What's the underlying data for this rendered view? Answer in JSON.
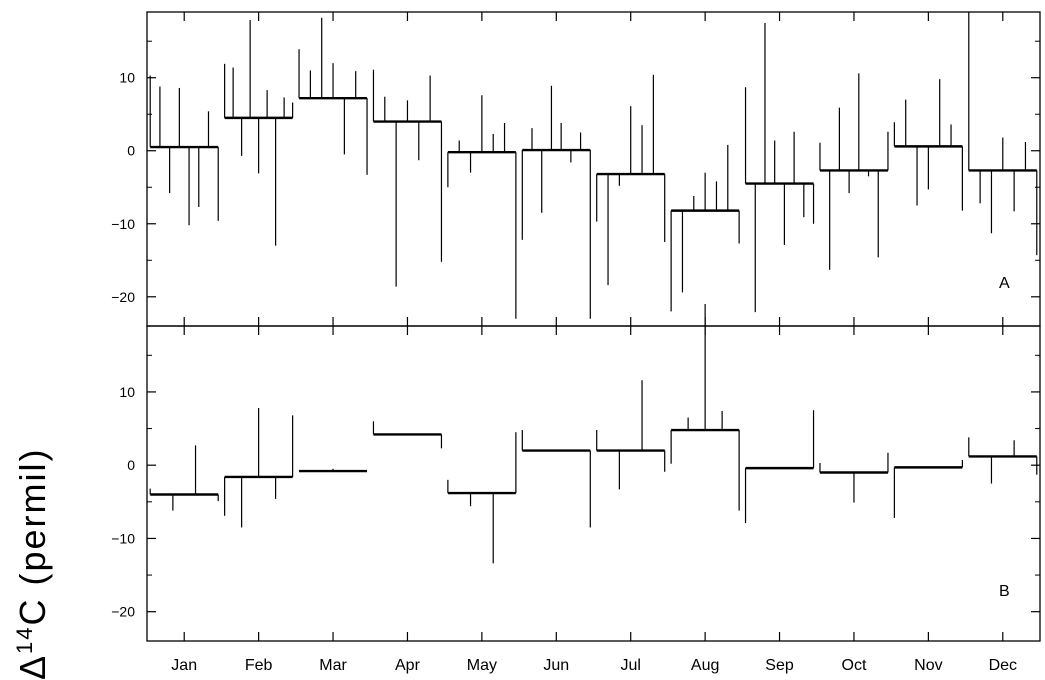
{
  "chart_data": {
    "type": "bar",
    "ylabel_delta": "Δ",
    "ylabel_sup": "14",
    "ylabel_rest": "C   (permil)",
    "categories": [
      "Jan",
      "Feb",
      "Mar",
      "Apr",
      "May",
      "Jun",
      "Jul",
      "Aug",
      "Sep",
      "Oct",
      "Nov",
      "Dec"
    ],
    "ylim": [
      -24,
      19
    ],
    "yticks": [
      -20,
      -10,
      0,
      10
    ],
    "panels": [
      {
        "label": "A",
        "monthly_mean": [
          0.5,
          4.5,
          7.2,
          4.0,
          -0.2,
          0.1,
          -3.2,
          -8.2,
          -4.5,
          -2.7,
          0.6,
          -2.7
        ],
        "deviations": [
          [
            10.3,
            8.8,
            -5.8,
            8.6,
            -10.2,
            -7.7,
            5.4,
            -9.6
          ],
          [
            11.9,
            11.4,
            -0.7,
            17.9,
            -3.1,
            8.3,
            -13.0,
            7.3,
            6.6
          ],
          [
            13.9,
            11.0,
            18.2,
            12.0,
            -0.5,
            10.9,
            -3.3
          ],
          [
            11.1,
            7.4,
            -18.6,
            6.9,
            -1.3,
            10.3,
            -15.2
          ],
          [
            -5.0,
            1.4,
            -3.0,
            7.6,
            2.3,
            3.8,
            -23.0
          ],
          [
            -12.2,
            3.1,
            -8.5,
            8.9,
            3.8,
            -1.6,
            2.5,
            -23.0
          ],
          [
            -9.7,
            -18.4,
            -4.8,
            6.1,
            3.5,
            10.4,
            -12.5
          ],
          [
            -22.0,
            -19.4,
            -6.2,
            -3.0,
            -4.2,
            0.8,
            -12.7
          ],
          [
            8.7,
            -22.1,
            17.5,
            1.4,
            -12.9,
            2.6,
            -9.1,
            -10.0
          ],
          [
            1.1,
            -16.3,
            5.9,
            -5.8,
            10.6,
            -3.5,
            -14.6,
            2.6
          ],
          [
            3.9,
            7.0,
            -7.5,
            -5.3,
            9.8,
            3.6,
            -8.2
          ],
          [
            19.0,
            -7.2,
            -11.3,
            1.8,
            -8.3,
            1.2,
            -14.3
          ]
        ]
      },
      {
        "label": "B",
        "monthly_mean": [
          -4.0,
          -1.6,
          -0.8,
          4.2,
          -3.8,
          2.0,
          2.0,
          4.8,
          -0.4,
          -1.0,
          -0.3,
          1.2
        ],
        "deviations": [
          [
            -3.2,
            -6.2,
            2.7,
            -4.9
          ],
          [
            -6.9,
            -8.5,
            7.8,
            -4.6,
            6.8
          ],
          [
            -0.5
          ],
          [
            6.0,
            2.3
          ],
          [
            -2.0,
            -5.6,
            -13.4,
            4.5
          ],
          [
            4.8,
            -8.5
          ],
          [
            4.8,
            -3.3,
            11.6,
            -0.9
          ],
          [
            0.2,
            6.5,
            22.0,
            7.4,
            -6.2
          ],
          [
            -7.9,
            7.5
          ],
          [
            0.3,
            -5.1,
            1.7
          ],
          [
            -7.2,
            0.7
          ],
          [
            3.8,
            -2.5,
            3.4,
            -1.3
          ]
        ]
      }
    ]
  }
}
